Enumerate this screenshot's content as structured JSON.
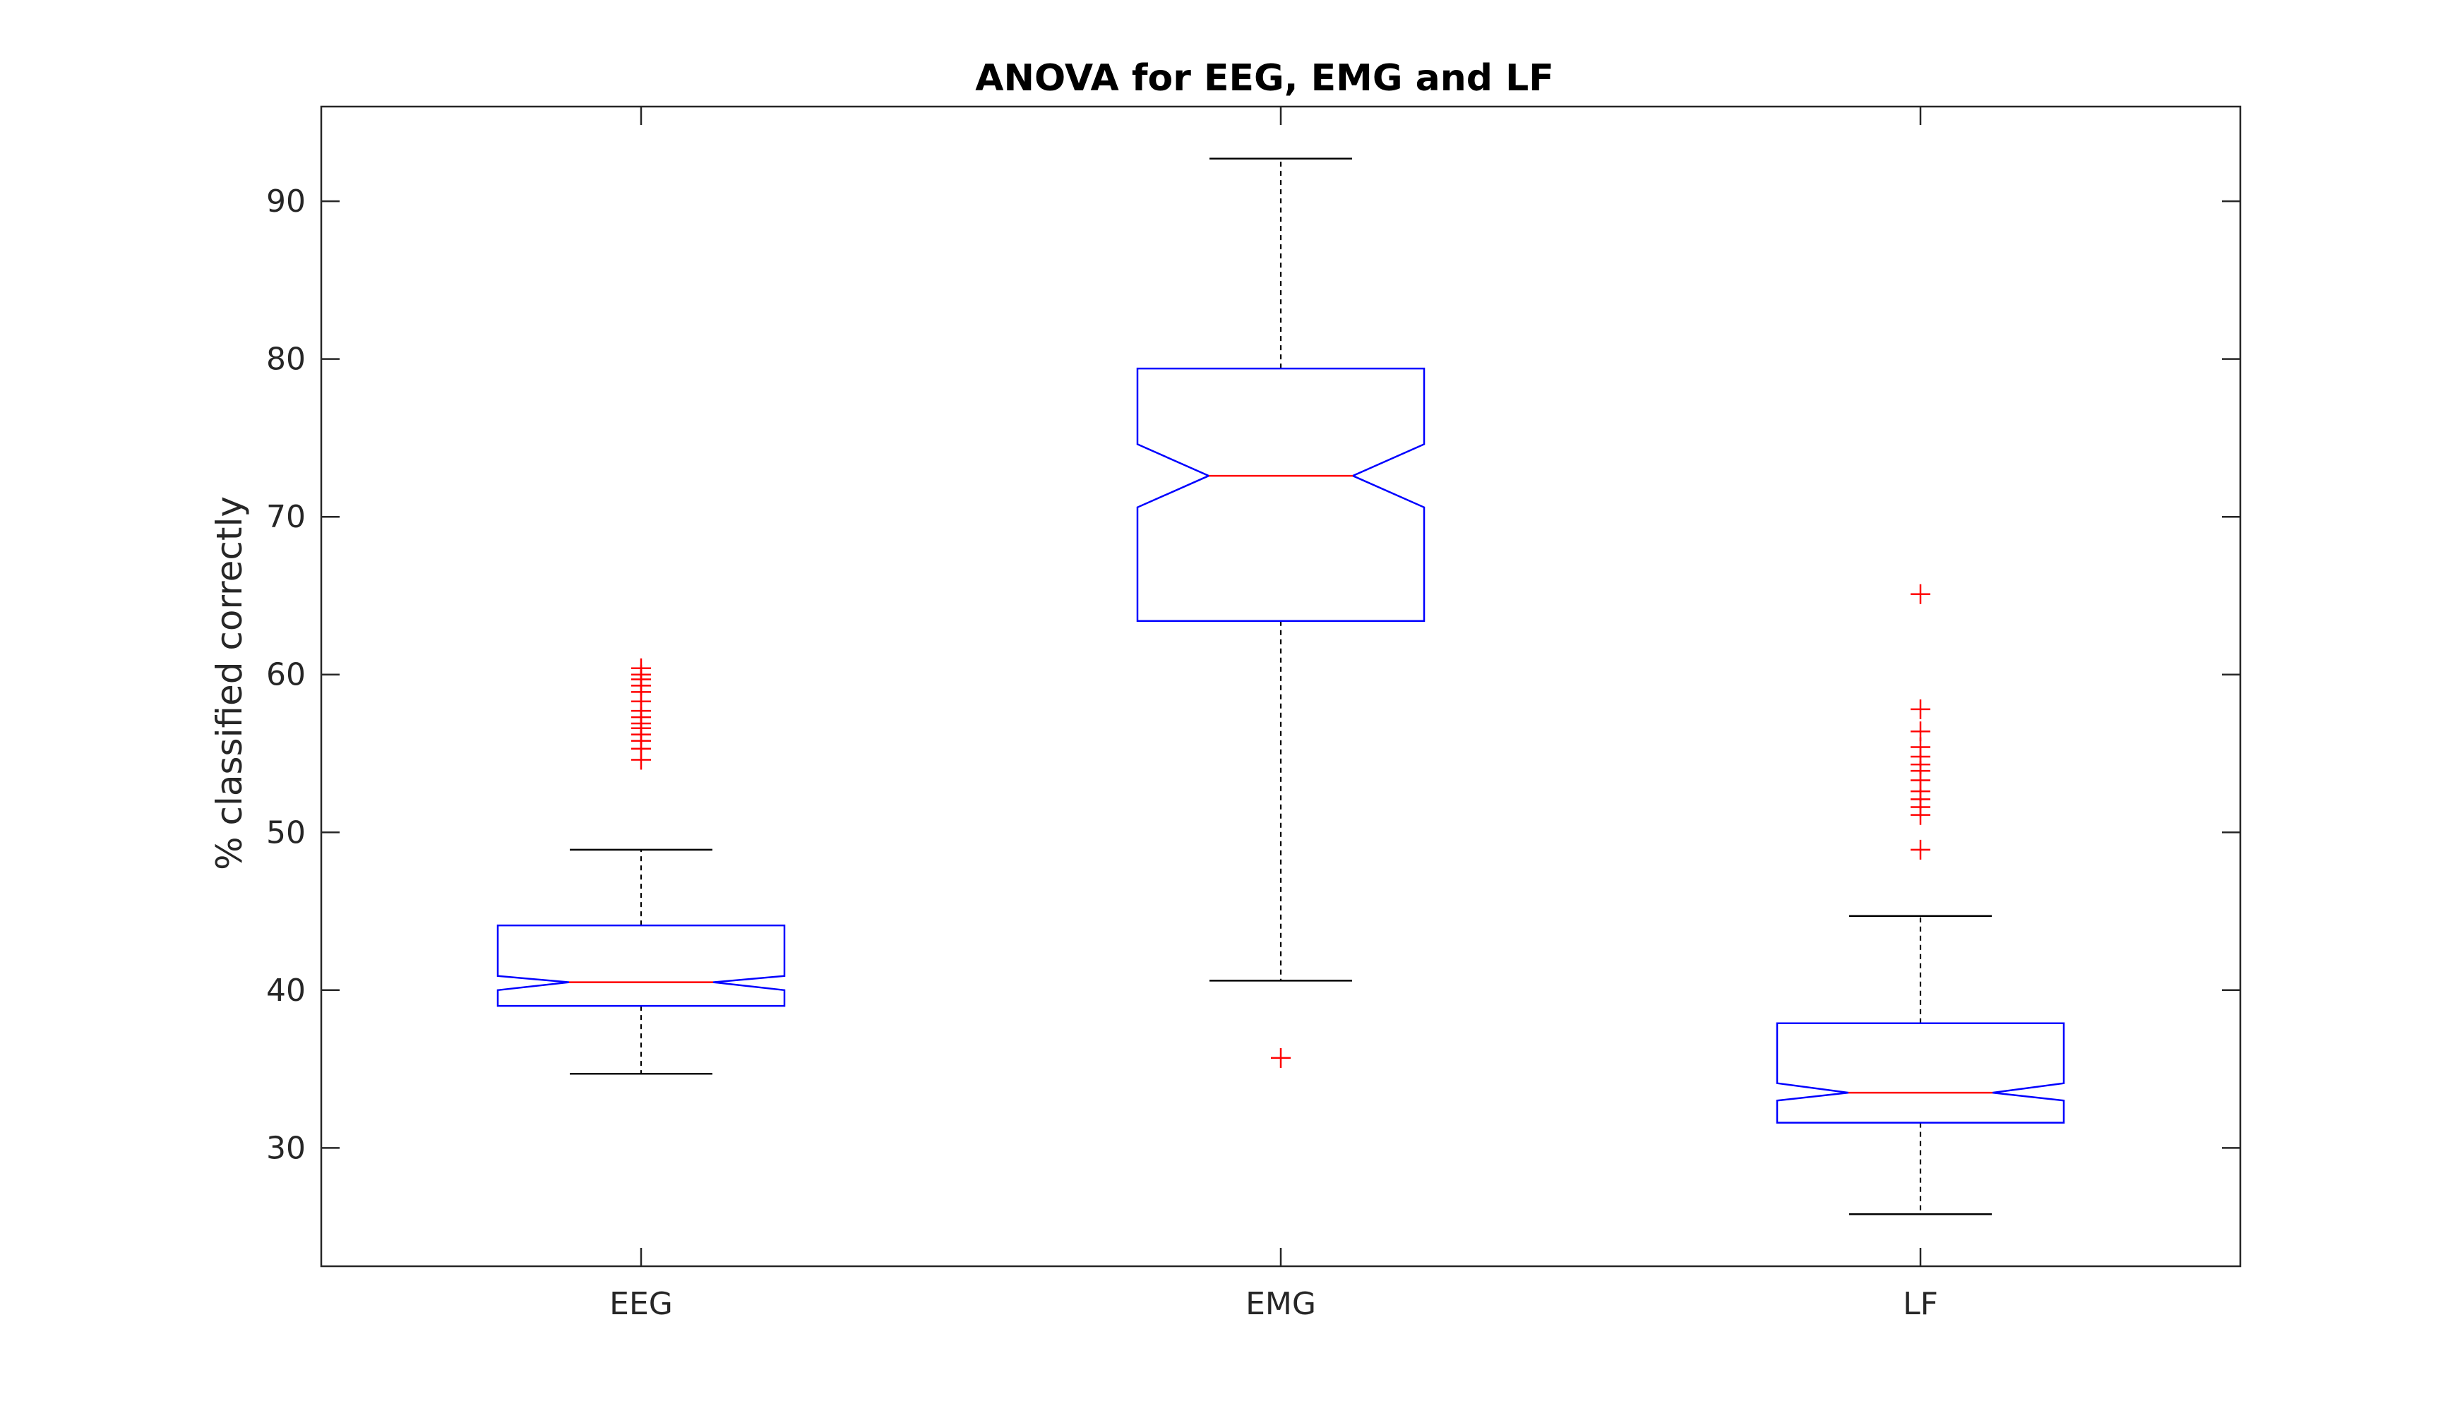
{
  "chart_data": {
    "type": "boxplot",
    "title": "ANOVA for EEG, EMG and LF",
    "xlabel": "",
    "ylabel": "% classified correctly",
    "ylim": [
      22.5,
      96
    ],
    "yticks": [
      30,
      40,
      50,
      60,
      70,
      80,
      90
    ],
    "categories": [
      "EEG",
      "EMG",
      "LF"
    ],
    "notched": true,
    "grid": false,
    "legend": "none",
    "series": [
      {
        "category": "EEG",
        "whisker_low": 34.7,
        "q1": 39.0,
        "notch_low": 40.0,
        "median": 40.5,
        "notch_high": 40.9,
        "q3": 44.1,
        "whisker_high": 48.9,
        "outliers": [
          54.6,
          55.3,
          55.8,
          56.2,
          56.6,
          56.9,
          57.3,
          57.7,
          58.3,
          58.9,
          59.3,
          59.7,
          60.0,
          60.4
        ]
      },
      {
        "category": "EMG",
        "whisker_low": 40.6,
        "q1": 63.4,
        "notch_low": 70.6,
        "median": 72.6,
        "notch_high": 74.6,
        "q3": 79.4,
        "whisker_high": 92.7,
        "outliers": [
          35.7
        ]
      },
      {
        "category": "LF",
        "whisker_low": 25.8,
        "q1": 31.6,
        "notch_low": 33.0,
        "median": 33.5,
        "notch_high": 34.1,
        "q3": 37.9,
        "whisker_high": 44.7,
        "outliers": [
          48.9,
          51.1,
          51.6,
          52.1,
          52.6,
          53.3,
          53.9,
          54.3,
          54.8,
          55.4,
          56.4,
          57.8,
          65.1
        ]
      }
    ],
    "colors": {
      "box": "#0000ff",
      "median": "#ff0000",
      "outlier": "#ff0000",
      "whisker": "#000000",
      "axes": "#262626"
    }
  }
}
